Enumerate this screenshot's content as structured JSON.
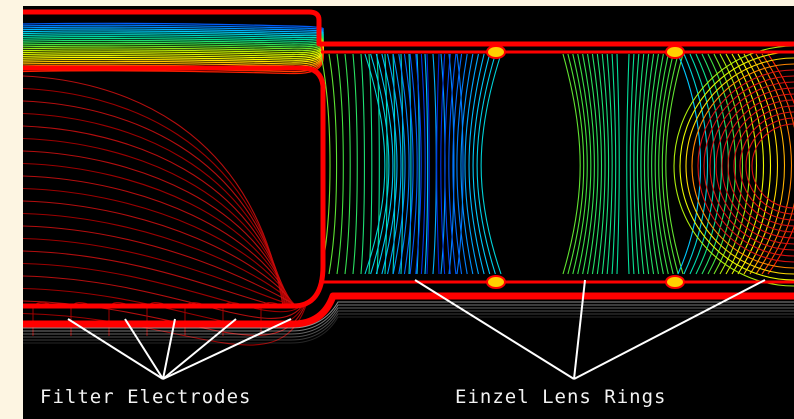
{
  "labels": {
    "filter_electrodes": "Filter Electrodes",
    "einzel_lens_rings": "Einzel Lens Rings"
  },
  "colors": {
    "background": "#000000",
    "margin": "#fdf5e2",
    "boundary": "#ff0000",
    "potential_scale": [
      "#0000c8",
      "#0060ff",
      "#00c8ff",
      "#00e0a0",
      "#40e040",
      "#c8f000",
      "#ffff00",
      "#ffa000",
      "#ff2000"
    ],
    "annotation_lines": "#ffffff"
  },
  "icons": {
    "electrode": "electrode-glyph",
    "lens_ring": "lens-ring-glyph"
  }
}
